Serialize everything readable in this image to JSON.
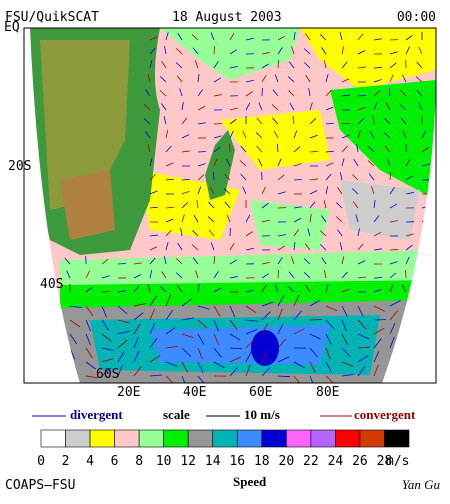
{
  "header": {
    "source": "FSU/QuikSCAT",
    "date": "18 August 2003",
    "time": "00:00"
  },
  "latitude_labels": [
    "EQ",
    "20S",
    "40S",
    "60S"
  ],
  "longitude_labels": [
    "20E",
    "40E",
    "60E",
    "80E"
  ],
  "arrow_legend": {
    "divergent": "divergent",
    "scale": "scale",
    "scale_value": "10 m/s",
    "convergent": "convergent"
  },
  "colorbar": {
    "labels": [
      "0",
      "2",
      "4",
      "6",
      "8",
      "10",
      "12",
      "14",
      "16",
      "18",
      "20",
      "22",
      "24",
      "26",
      "28"
    ],
    "unit": "m/s",
    "title": "Speed",
    "colors": [
      "#ffffff",
      "#cdcdcd",
      "#ffff00",
      "#ffc8c8",
      "#96ff96",
      "#00f000",
      "#969696",
      "#00b4b4",
      "#3c8cff",
      "#0000d2",
      "#ff64ff",
      "#b464ff",
      "#ff0000",
      "#d23c00",
      "#000000"
    ]
  },
  "footer": {
    "institution": "COAPS–FSU",
    "author": "Yan Gu"
  }
}
